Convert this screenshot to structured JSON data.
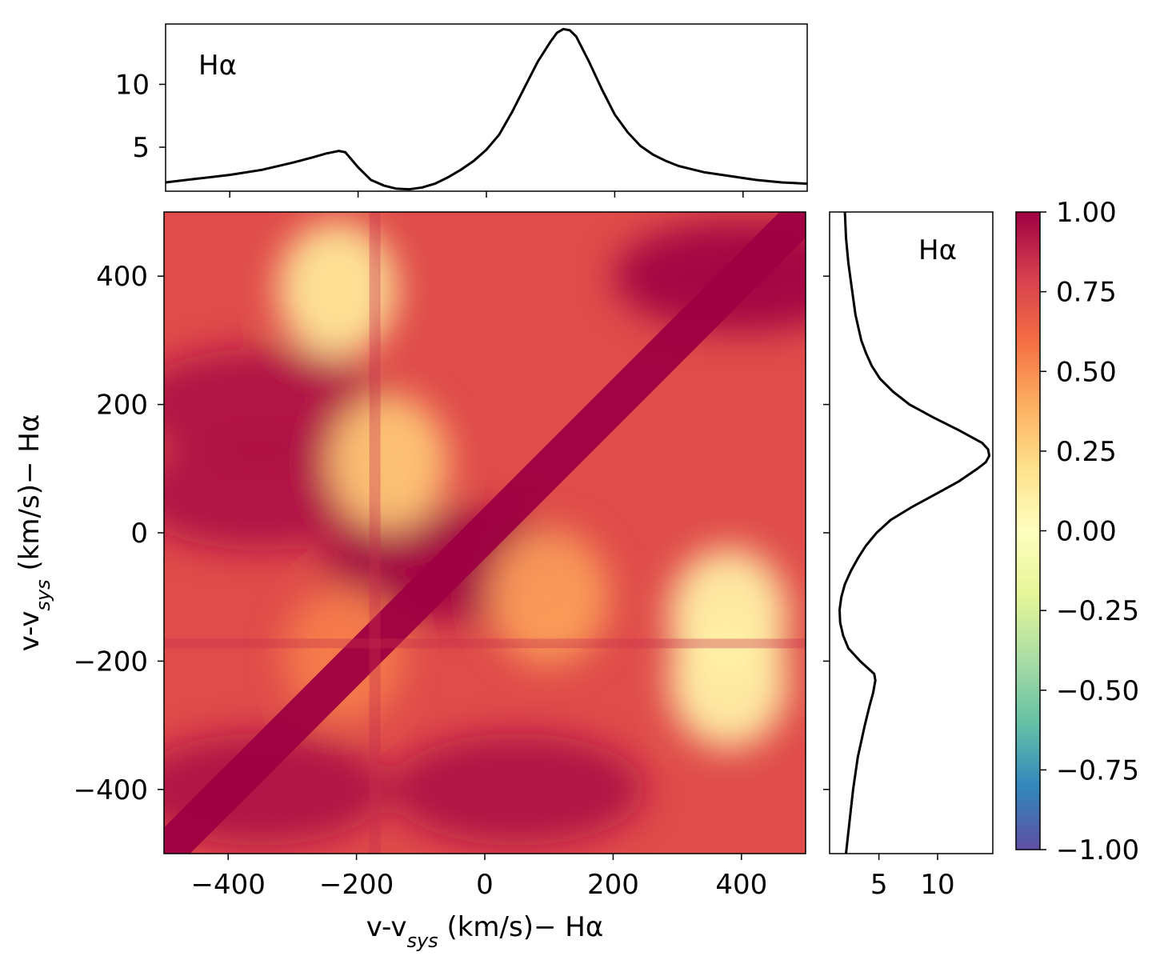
{
  "chart_data": [
    {
      "type": "line",
      "panel": "top",
      "annotation": "Hα",
      "ylim": [
        1.5,
        14.8
      ],
      "xlim": [
        -500,
        500
      ],
      "yticks": [
        5,
        10
      ],
      "x": [
        -500,
        -450,
        -400,
        -350,
        -300,
        -270,
        -250,
        -230,
        -220,
        -200,
        -180,
        -160,
        -140,
        -120,
        -100,
        -80,
        -60,
        -40,
        -20,
        0,
        20,
        40,
        60,
        80,
        100,
        110,
        120,
        130,
        140,
        150,
        160,
        180,
        200,
        220,
        240,
        260,
        280,
        300,
        340,
        380,
        420,
        460,
        500
      ],
      "y": [
        2.2,
        2.5,
        2.8,
        3.2,
        3.8,
        4.2,
        4.5,
        4.7,
        4.6,
        3.4,
        2.4,
        1.95,
        1.7,
        1.65,
        1.8,
        2.1,
        2.6,
        3.2,
        3.9,
        4.8,
        6.0,
        7.8,
        9.8,
        11.8,
        13.4,
        14.1,
        14.4,
        14.3,
        13.8,
        12.8,
        11.8,
        9.6,
        7.6,
        6.2,
        5.1,
        4.4,
        3.9,
        3.5,
        3.0,
        2.7,
        2.4,
        2.2,
        2.1
      ]
    },
    {
      "type": "heatmap",
      "panel": "main",
      "xlabel": "v-v$_{sys}$ (km/s)− Hα",
      "ylabel": "v-v$_{sys}$ (km/s)− Hα",
      "xlim": [
        -500,
        500
      ],
      "ylim": [
        -500,
        500
      ],
      "xticks": [
        -400,
        -200,
        0,
        200,
        400
      ],
      "yticks": [
        -400,
        -200,
        0,
        200,
        400
      ],
      "colormap": "Spectral_r",
      "vmin": -1.0,
      "vmax": 1.0,
      "value_range_shown": [
        0.0,
        1.0
      ],
      "features": {
        "diagonal_ridge": 1.0,
        "low_correlation_regions": [
          {
            "x": -230,
            "y": 380,
            "value": 0.15
          },
          {
            "x": -220,
            "y": -190,
            "value": 0.55
          },
          {
            "x": -150,
            "y": 110,
            "value": 0.3
          },
          {
            "x": 380,
            "y": -130,
            "value": 0.1
          },
          {
            "x": 380,
            "y": -230,
            "value": 0.1
          },
          {
            "x": 100,
            "y": -100,
            "value": 0.45
          }
        ],
        "high_correlation_regions": [
          {
            "x": -350,
            "y": 200,
            "value": 0.95
          },
          {
            "x": -350,
            "y": 60,
            "value": 0.95
          },
          {
            "x": -350,
            "y": -400,
            "value": 0.95
          },
          {
            "x": 50,
            "y": -400,
            "value": 0.95
          },
          {
            "x": 400,
            "y": 400,
            "value": 1.0
          },
          {
            "x": -50,
            "y": -50,
            "value": 1.0
          }
        ]
      }
    },
    {
      "type": "line",
      "panel": "right",
      "annotation": "Hα",
      "xlim": [
        0.8,
        14.7
      ],
      "ylim": [
        -500,
        500
      ],
      "xticks": [
        5,
        10
      ],
      "note": "same profile as top panel, rotated (x = flux, y = velocity)"
    },
    {
      "type": "colorbar",
      "panel": "colorbar",
      "range": [
        -1.0,
        1.0
      ],
      "tick_labels": [
        "1.00",
        "0.75",
        "0.50",
        "0.25",
        "0.00",
        "−0.25",
        "−0.50",
        "−0.75",
        "−1.00"
      ],
      "ticks": [
        1.0,
        0.75,
        0.5,
        0.25,
        0.0,
        -0.25,
        -0.5,
        -0.75,
        -1.0
      ],
      "stops": [
        "#5e4fa2",
        "#3288bd",
        "#66c2a5",
        "#abdda4",
        "#e6f598",
        "#ffffbf",
        "#fee08b",
        "#fdae61",
        "#f46d43",
        "#d53e4f",
        "#9e0142"
      ]
    }
  ]
}
